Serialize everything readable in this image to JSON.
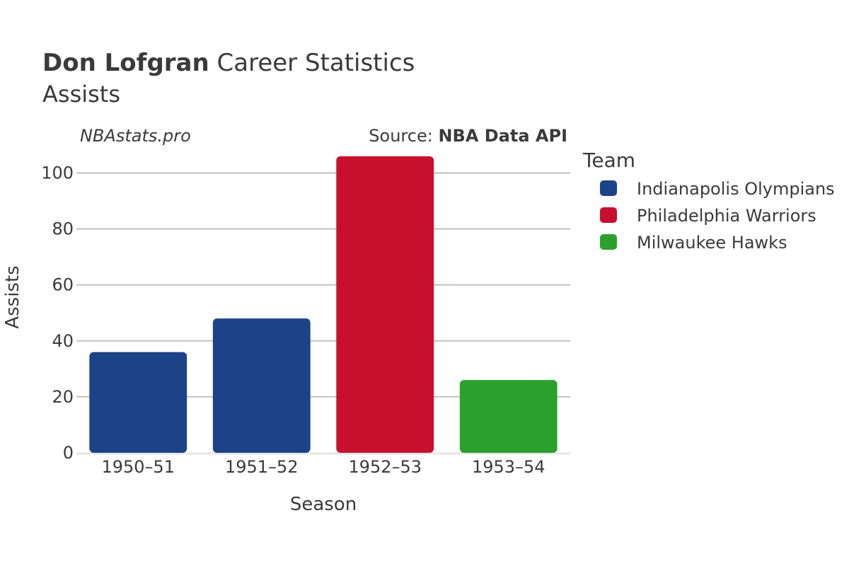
{
  "header": {
    "title_bold": "Don Lofgran",
    "title_rest": "Career Statistics",
    "subtitle": "Assists"
  },
  "watermark": "NBAstats.pro",
  "source": {
    "prefix": "Source: ",
    "name": "NBA Data API"
  },
  "chart_data": {
    "type": "bar",
    "xlabel": "Season",
    "ylabel": "Assists",
    "ylim": [
      0,
      110
    ],
    "yticks": [
      0,
      20,
      40,
      60,
      80,
      100
    ],
    "grid": true,
    "categories": [
      "1950–51",
      "1951–52",
      "1952–53",
      "1953–54"
    ],
    "values": [
      36,
      48,
      106,
      26
    ],
    "bar_teams": [
      "Indianapolis Olympians",
      "Indianapolis Olympians",
      "Philadelphia Warriors",
      "Milwaukee Hawks"
    ],
    "legend": {
      "title": "Team",
      "placement": "right",
      "entries": [
        {
          "name": "Indianapolis Olympians",
          "color": "#1c4288"
        },
        {
          "name": "Philadelphia Warriors",
          "color": "#c8102e"
        },
        {
          "name": "Milwaukee Hawks",
          "color": "#2ca02c"
        }
      ]
    }
  }
}
